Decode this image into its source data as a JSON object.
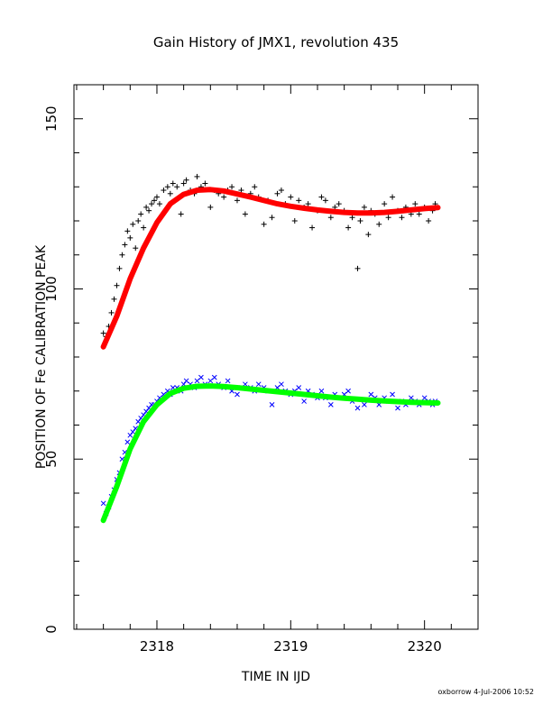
{
  "chart_data": {
    "type": "scatter",
    "title": "Gain History of JMX1, revolution 435",
    "xlabel": "TIME IN IJD",
    "ylabel": "POSITION OF Fe CALIBRATION PEAK",
    "footer": "oxborrow  4-Jul-2006 10:52",
    "xlim": [
      2317.38,
      2320.4
    ],
    "ylim": [
      0,
      160
    ],
    "x_ticks": [
      2318,
      2319,
      2320
    ],
    "x_tick_labels": [
      "2318",
      "2319",
      "2320"
    ],
    "y_ticks": [
      0,
      50,
      100,
      150
    ],
    "y_tick_labels": [
      "0",
      "50",
      "100",
      "150"
    ],
    "grid": false,
    "series": [
      {
        "marker": "plus",
        "color": "#000000",
        "x": [
          2317.6,
          2317.62,
          2317.64,
          2317.66,
          2317.68,
          2317.7,
          2317.72,
          2317.74,
          2317.76,
          2317.78,
          2317.8,
          2317.82,
          2317.84,
          2317.86,
          2317.88,
          2317.9,
          2317.92,
          2317.94,
          2317.96,
          2317.98,
          2318.0,
          2318.02,
          2318.05,
          2318.08,
          2318.1,
          2318.12,
          2318.15,
          2318.18,
          2318.2,
          2318.22,
          2318.25,
          2318.28,
          2318.3,
          2318.33,
          2318.36,
          2318.4,
          2318.43,
          2318.46,
          2318.5,
          2318.53,
          2318.56,
          2318.6,
          2318.63,
          2318.66,
          2318.7,
          2318.73,
          2318.76,
          2318.8,
          2318.83,
          2318.86,
          2318.9,
          2318.93,
          2318.96,
          2319.0,
          2319.03,
          2319.06,
          2319.1,
          2319.13,
          2319.16,
          2319.2,
          2319.23,
          2319.26,
          2319.3,
          2319.33,
          2319.36,
          2319.4,
          2319.43,
          2319.46,
          2319.5,
          2319.52,
          2319.55,
          2319.58,
          2319.6,
          2319.63,
          2319.66,
          2319.7,
          2319.73,
          2319.76,
          2319.8,
          2319.83,
          2319.86,
          2319.9,
          2319.93,
          2319.96,
          2320.0,
          2320.03,
          2320.06,
          2320.08
        ],
        "y": [
          87,
          86,
          89,
          93,
          97,
          101,
          106,
          110,
          113,
          117,
          115,
          119,
          112,
          120,
          122,
          118,
          124,
          123,
          125,
          126,
          127,
          125,
          129,
          130,
          128,
          131,
          130,
          122,
          131,
          132,
          129,
          128,
          133,
          130,
          131,
          124,
          129,
          128,
          127,
          129,
          130,
          126,
          129,
          122,
          128,
          130,
          127,
          119,
          126,
          121,
          128,
          129,
          125,
          127,
          120,
          126,
          124,
          125,
          118,
          123,
          127,
          126,
          121,
          124,
          125,
          123,
          118,
          121,
          106,
          120,
          124,
          116,
          123,
          122,
          119,
          125,
          121,
          127,
          123,
          121,
          124,
          122,
          125,
          122,
          124,
          120,
          123,
          125
        ]
      },
      {
        "marker": "line",
        "color": "#ff0000",
        "x": [
          2317.6,
          2317.7,
          2317.8,
          2317.9,
          2318.0,
          2318.1,
          2318.2,
          2318.3,
          2318.4,
          2318.5,
          2318.6,
          2318.7,
          2318.8,
          2318.9,
          2319.0,
          2319.1,
          2319.2,
          2319.3,
          2319.4,
          2319.5,
          2319.6,
          2319.7,
          2319.8,
          2319.9,
          2320.0,
          2320.1
        ],
        "y": [
          83,
          92,
          103,
          112,
          119.5,
          125,
          127.8,
          129,
          129.2,
          128.8,
          127.9,
          127,
          126,
          125,
          124.3,
          123.7,
          123.2,
          122.8,
          122.5,
          122.3,
          122.3,
          122.5,
          122.8,
          123.2,
          123.6,
          123.9
        ]
      },
      {
        "marker": "cross",
        "color": "#0000ff",
        "x": [
          2317.6,
          2317.62,
          2317.64,
          2317.66,
          2317.68,
          2317.7,
          2317.72,
          2317.74,
          2317.76,
          2317.78,
          2317.8,
          2317.82,
          2317.84,
          2317.86,
          2317.88,
          2317.9,
          2317.92,
          2317.94,
          2317.96,
          2317.98,
          2318.0,
          2318.02,
          2318.05,
          2318.08,
          2318.1,
          2318.12,
          2318.15,
          2318.18,
          2318.2,
          2318.22,
          2318.25,
          2318.28,
          2318.3,
          2318.33,
          2318.36,
          2318.4,
          2318.43,
          2318.46,
          2318.5,
          2318.53,
          2318.56,
          2318.6,
          2318.63,
          2318.66,
          2318.7,
          2318.73,
          2318.76,
          2318.8,
          2318.83,
          2318.86,
          2318.9,
          2318.93,
          2318.96,
          2319.0,
          2319.03,
          2319.06,
          2319.1,
          2319.13,
          2319.16,
          2319.2,
          2319.23,
          2319.26,
          2319.3,
          2319.33,
          2319.36,
          2319.4,
          2319.43,
          2319.46,
          2319.5,
          2319.55,
          2319.6,
          2319.63,
          2319.66,
          2319.7,
          2319.73,
          2319.76,
          2319.8,
          2319.83,
          2319.86,
          2319.9,
          2319.93,
          2319.96,
          2320.0,
          2320.03,
          2320.06,
          2320.08
        ],
        "y": [
          37,
          34,
          36,
          39,
          41,
          44,
          46,
          50,
          52,
          55,
          57,
          58,
          59,
          61,
          62,
          63,
          64,
          65,
          66,
          66,
          67,
          68,
          69,
          70,
          69,
          71,
          71,
          70,
          72,
          73,
          72,
          71,
          73,
          74,
          72,
          73,
          74,
          72,
          71,
          73,
          70,
          69,
          71,
          72,
          71,
          70,
          72,
          71,
          70,
          66,
          71,
          72,
          70,
          69,
          70,
          71,
          67,
          70,
          69,
          68,
          70,
          68,
          66,
          69,
          68,
          69,
          70,
          67,
          65,
          66,
          69,
          68,
          66,
          68,
          67,
          69,
          65,
          67,
          66,
          68,
          67,
          66,
          68,
          67,
          66,
          67
        ]
      },
      {
        "marker": "line",
        "color": "#00ff00",
        "x": [
          2317.6,
          2317.7,
          2317.8,
          2317.9,
          2318.0,
          2318.1,
          2318.2,
          2318.3,
          2318.4,
          2318.5,
          2318.6,
          2318.7,
          2318.8,
          2318.9,
          2319.0,
          2319.1,
          2319.2,
          2319.3,
          2319.4,
          2319.5,
          2319.6,
          2319.7,
          2319.8,
          2319.9,
          2320.0,
          2320.1
        ],
        "y": [
          32,
          42,
          53,
          61,
          66,
          69.3,
          70.8,
          71.4,
          71.5,
          71.3,
          71,
          70.6,
          70.2,
          69.8,
          69.4,
          69,
          68.6,
          68.2,
          67.9,
          67.6,
          67.3,
          67.1,
          66.9,
          66.7,
          66.6,
          66.5
        ]
      }
    ]
  }
}
